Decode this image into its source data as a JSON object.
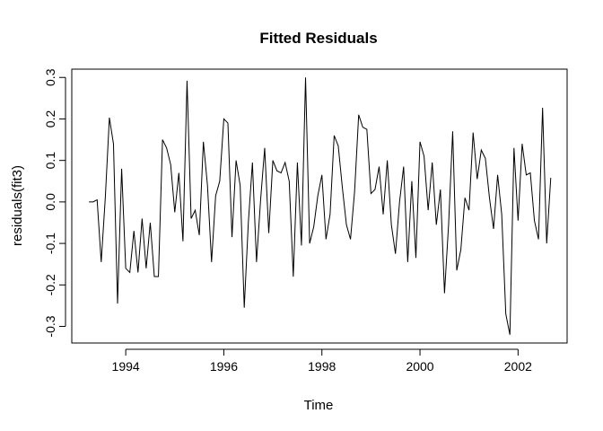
{
  "chart_data": {
    "type": "line",
    "title": "Fitted Residuals",
    "xlabel": "Time",
    "ylabel": "residuals(fit3)",
    "xlim": [
      1992.9,
      2003.0
    ],
    "ylim": [
      -0.34,
      0.32
    ],
    "x_ticks": [
      1994,
      1996,
      1998,
      2000,
      2002
    ],
    "x_tick_labels": [
      "1994",
      "1996",
      "1998",
      "2000",
      "2002"
    ],
    "y_ticks": [
      -0.3,
      -0.2,
      -0.1,
      0.0,
      0.1,
      0.2,
      0.3
    ],
    "y_tick_labels": [
      "-0.3",
      "-0.2",
      "-0.1",
      "0.0",
      "0.1",
      "0.2",
      "0.3"
    ],
    "grid": false,
    "line_color": "#000000",
    "x_start": 1993.25,
    "x_step": 0.0833333,
    "series": [
      {
        "values": [
          0.0,
          0.0,
          0.005,
          -0.145,
          0.01,
          0.203,
          0.14,
          -0.245,
          0.08,
          -0.16,
          -0.17,
          -0.07,
          -0.17,
          -0.04,
          -0.16,
          -0.05,
          -0.18,
          -0.18,
          0.15,
          0.13,
          0.09,
          -0.025,
          0.07,
          -0.095,
          0.292,
          -0.04,
          -0.02,
          -0.08,
          0.145,
          0.04,
          -0.145,
          0.015,
          0.05,
          0.2,
          0.19,
          -0.085,
          0.1,
          0.04,
          -0.255,
          -0.05,
          0.095,
          -0.145,
          0.005,
          0.13,
          -0.075,
          0.1,
          0.075,
          0.07,
          0.095,
          0.05,
          -0.18,
          0.095,
          -0.105,
          0.3,
          -0.1,
          -0.06,
          0.015,
          0.065,
          -0.09,
          -0.03,
          0.16,
          0.135,
          0.035,
          -0.055,
          -0.09,
          0.025,
          0.21,
          0.18,
          0.175,
          0.02,
          0.03,
          0.085,
          -0.03,
          0.1,
          -0.055,
          -0.125,
          0.0,
          0.085,
          -0.145,
          0.05,
          -0.135,
          0.145,
          0.11,
          -0.02,
          0.095,
          -0.055,
          0.03,
          -0.22,
          -0.055,
          0.17,
          -0.165,
          -0.115,
          0.01,
          -0.02,
          0.167,
          0.055,
          0.125,
          0.105,
          0.01,
          -0.065,
          0.065,
          -0.03,
          -0.27,
          -0.32,
          0.13,
          -0.045,
          0.14,
          0.065,
          0.07,
          -0.045,
          -0.09,
          0.227,
          -0.1,
          0.058
        ]
      }
    ]
  }
}
